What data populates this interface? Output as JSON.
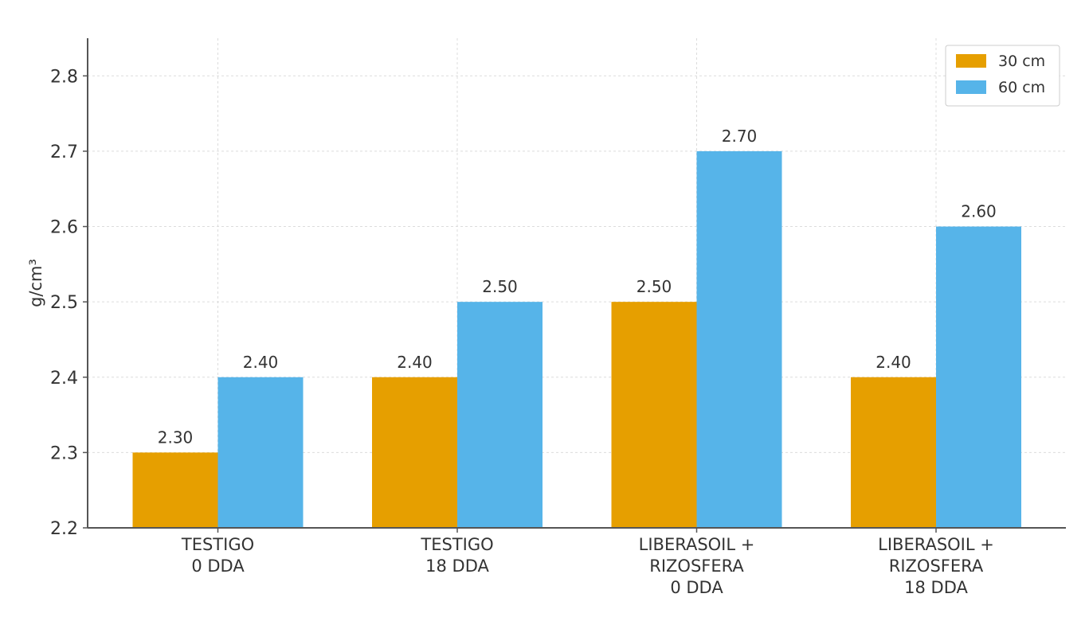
{
  "chart_data": {
    "type": "bar",
    "title": "",
    "xlabel": "",
    "ylabel": "g/cm³",
    "ylim": [
      2.2,
      2.85
    ],
    "yticks": [
      "2.2",
      "2.3",
      "2.4",
      "2.5",
      "2.6",
      "2.7",
      "2.8"
    ],
    "grid": true,
    "legend_position": "top-right",
    "categories": [
      [
        "TESTIGO",
        "0 DDA"
      ],
      [
        "TESTIGO",
        "18 DDA"
      ],
      [
        "LIBERASOIL +",
        "RIZOSFERA",
        "0 DDA"
      ],
      [
        "LIBERASOIL +",
        "RIZOSFERA",
        "18 DDA"
      ]
    ],
    "series": [
      {
        "name": "30 cm",
        "color": "#E69F00",
        "values": [
          2.3,
          2.4,
          2.5,
          2.4
        ],
        "labels": [
          "2.30",
          "2.40",
          "2.50",
          "2.40"
        ]
      },
      {
        "name": "60 cm",
        "color": "#56B4E9",
        "values": [
          2.4,
          2.5,
          2.7,
          2.6
        ],
        "labels": [
          "2.40",
          "2.50",
          "2.70",
          "2.60"
        ]
      }
    ]
  }
}
